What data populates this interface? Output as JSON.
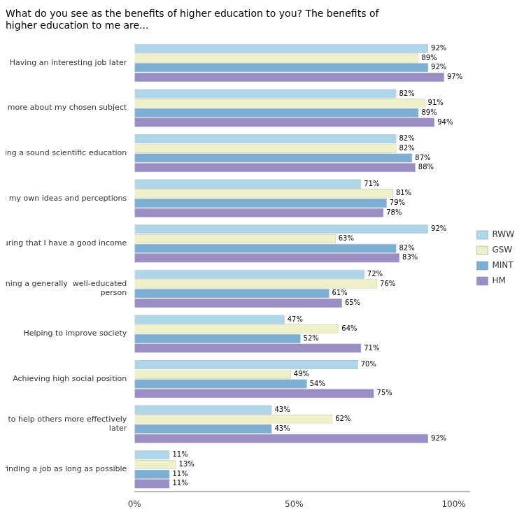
{
  "chart_data": {
    "type": "bar",
    "orientation": "horizontal",
    "title": "What do you see as the benefits of higher education to you? The benefits of\nhigher education to me are...",
    "categories": [
      "Having an interesting job later",
      "Learning  more about my chosen subject",
      "Obtaining a sound scientific education",
      "Developing my own ideas and perceptions",
      "Ensuring that I have a good income",
      "Becoming a generally  well-educated\nperson",
      "Helping to improve society",
      "Achieving high social position",
      "Being able to help others more effectively\nlater",
      "Putting off finding a job as long as possible"
    ],
    "series": [
      {
        "name": "RWW",
        "color": "#aed6e8",
        "values": [
          92,
          82,
          82,
          71,
          92,
          72,
          47,
          70,
          43,
          11
        ],
        "value_labels": [
          "92%",
          "82%",
          "82%",
          "71%",
          "92%",
          "72%",
          "47%",
          "70%",
          "43%",
          "11%"
        ]
      },
      {
        "name": "GSW",
        "color": "#f0f0c8",
        "values": [
          89,
          91,
          82,
          81,
          63,
          76,
          64,
          49,
          62,
          13
        ],
        "value_labels": [
          "89%",
          "91%",
          "82%",
          "81%",
          "63%",
          "76%",
          "64%",
          "49%",
          "62%",
          "13%"
        ]
      },
      {
        "name": "MINT",
        "color": "#7bafd4",
        "values": [
          92,
          89,
          87,
          79,
          82,
          61,
          52,
          54,
          43,
          11
        ],
        "value_labels": [
          "92%",
          "89%",
          "87%",
          "79%",
          "82%",
          "61%",
          "52%",
          "54%",
          "43%",
          "11%"
        ]
      },
      {
        "name": "HM",
        "color": "#9b8ec4",
        "values": [
          97,
          94,
          88,
          78,
          83,
          65,
          71,
          75,
          92,
          11
        ],
        "value_labels": [
          "97%",
          "94%",
          "88%",
          "78%",
          "83%",
          "65%",
          "71%",
          "75%",
          "92%",
          "11%"
        ]
      }
    ],
    "xlim": [
      0,
      105
    ],
    "xticks": [
      {
        "value": 0,
        "label": "0%"
      },
      {
        "value": 50,
        "label": "50%"
      },
      {
        "value": 100,
        "label": "100%"
      }
    ],
    "grid": false,
    "legend": "right",
    "data_labels": true
  }
}
